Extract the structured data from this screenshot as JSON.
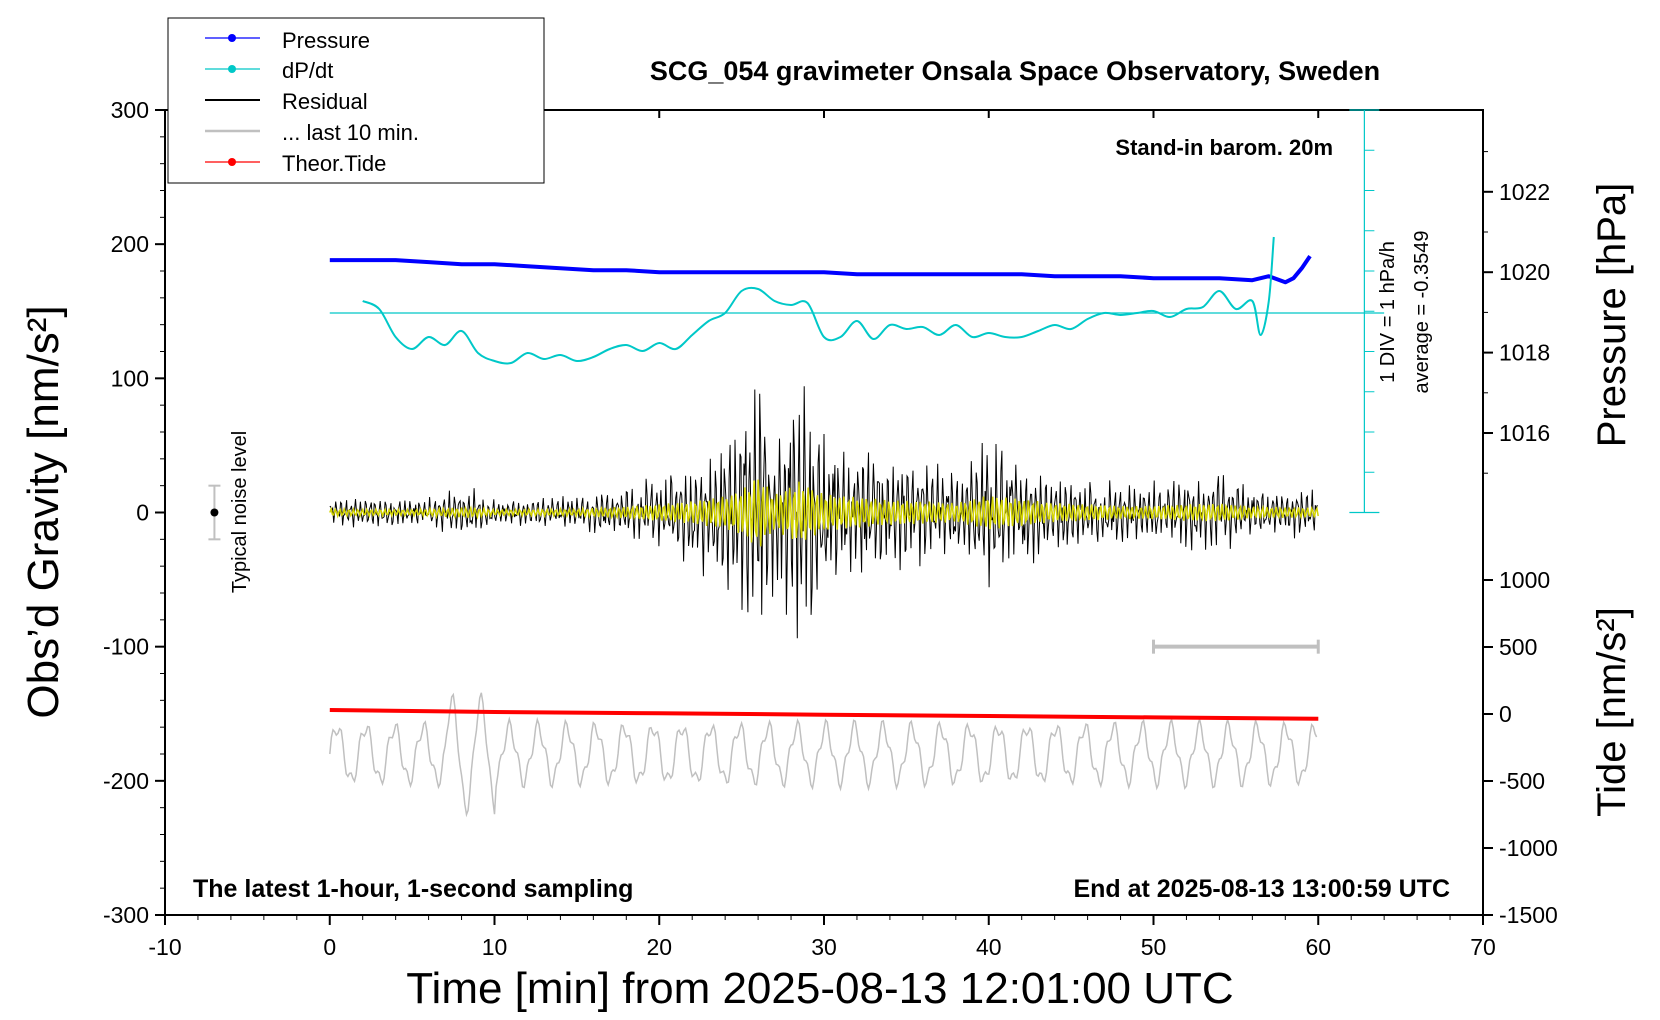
{
  "chart_data": {
    "type": "line",
    "title": "SCG_054 gravimeter Onsala Space Observatory, Sweden",
    "xlabel": "Time [min] from 2025-08-13 12:01:00 UTC",
    "ylabel_left": "Obs’d Gravity [nm/s²]",
    "ylabel_right_top": "Pressure [hPa]",
    "ylabel_right_bottom": "Tide [nm/s²]",
    "xlim": [
      -10,
      70
    ],
    "ylim_left": [
      -300,
      300
    ],
    "x_ticks": [
      "-10",
      "0",
      "10",
      "20",
      "30",
      "40",
      "50",
      "60",
      "70"
    ],
    "y_left_ticks": [
      "300",
      "200",
      "100",
      "0",
      "-100",
      "-200",
      "-300"
    ],
    "pressure_axis": {
      "ticks": [
        "1022",
        "1020",
        "1018",
        "1016"
      ],
      "range_hPa": [
        1014.3,
        1024.3
      ]
    },
    "tide_axis": {
      "ticks": [
        "1000",
        "500",
        "0",
        "-500",
        "-1000",
        "-1500"
      ],
      "range": [
        -1500,
        1500
      ]
    },
    "annotations": {
      "stand_in": "Stand-in barom. 20m",
      "latest": "The latest 1-hour, 1-second sampling",
      "end_at": "End at 2025-08-13 13:00:59 UTC",
      "noise": "Typical noise level",
      "div_scale": "1 DIV = 1 hPa/h",
      "average": "average = -0.3549"
    },
    "legend": {
      "placement": "top-left",
      "entries": [
        {
          "label": "Pressure",
          "color": "#0000ff"
        },
        {
          "label": "dP/dt",
          "color": "#00c8c8"
        },
        {
          "label": "Residual",
          "color": "#000000"
        },
        {
          "label": "... last 10 min.",
          "color": "#c0c0c0"
        },
        {
          "label": "Theor.Tide",
          "color": "#ff0000"
        }
      ]
    },
    "colors": {
      "pressure": "#0000ff",
      "dpdt": "#00c8c8",
      "residual": "#000000",
      "residual_smooth": "#d4d400",
      "last10": "#c0c0c0",
      "tide": "#ff0000"
    },
    "series": [
      {
        "name": "Pressure",
        "unit": "hPa",
        "x": [
          0,
          2,
          4,
          6,
          8,
          10,
          12,
          14,
          16,
          18,
          20,
          22,
          24,
          26,
          28,
          30,
          32,
          34,
          36,
          38,
          40,
          42,
          44,
          46,
          48,
          50,
          52,
          54,
          56,
          57,
          58,
          58.5,
          59,
          59.5
        ],
        "values": [
          1020.3,
          1020.3,
          1020.3,
          1020.25,
          1020.2,
          1020.2,
          1020.15,
          1020.1,
          1020.05,
          1020.05,
          1020.0,
          1020.0,
          1020.0,
          1020.0,
          1020.0,
          1020.0,
          1019.95,
          1019.95,
          1019.95,
          1019.95,
          1019.95,
          1019.95,
          1019.9,
          1019.9,
          1019.9,
          1019.85,
          1019.85,
          1019.85,
          1019.8,
          1019.9,
          1019.75,
          1019.85,
          1020.1,
          1020.4
        ]
      },
      {
        "name": "dP/dt",
        "unit": "hPa/h (1 DIV = 1 hPa/h; reference line at average = -0.3549)",
        "x": [
          2,
          3,
          4,
          5,
          6,
          7,
          8,
          9,
          10,
          11,
          12,
          13,
          14,
          15,
          16,
          17,
          18,
          19,
          20,
          21,
          22,
          23,
          24,
          25,
          26,
          27,
          28,
          29,
          30,
          31,
          32,
          33,
          34,
          35,
          36,
          37,
          38,
          39,
          40,
          41,
          42,
          43,
          44,
          45,
          46,
          47,
          48,
          49,
          50,
          51,
          52,
          53,
          54,
          55,
          56,
          56.5,
          57,
          57.3
        ],
        "values": [
          0.3,
          0.1,
          -0.6,
          -0.9,
          -0.6,
          -0.8,
          -0.45,
          -1.0,
          -1.2,
          -1.25,
          -1.0,
          -1.15,
          -1.05,
          -1.2,
          -1.1,
          -0.9,
          -0.8,
          -0.95,
          -0.75,
          -0.9,
          -0.55,
          -0.2,
          0.0,
          0.55,
          0.6,
          0.3,
          0.2,
          0.25,
          -0.6,
          -0.6,
          -0.2,
          -0.65,
          -0.3,
          -0.4,
          -0.35,
          -0.55,
          -0.3,
          -0.6,
          -0.5,
          -0.6,
          -0.6,
          -0.45,
          -0.3,
          -0.4,
          -0.15,
          0.0,
          -0.05,
          0.0,
          0.05,
          -0.1,
          0.1,
          0.15,
          0.55,
          0.1,
          0.3,
          -0.55,
          0.3,
          1.9
        ]
      },
      {
        "name": "Residual",
        "unit": "nm/s² (envelope amplitude, oscillating around 0)",
        "x": [
          0,
          5,
          8.5,
          10,
          15,
          18,
          20,
          22,
          24,
          25,
          26,
          27,
          28.5,
          30,
          32,
          34,
          36,
          38,
          40,
          42,
          44,
          46,
          48,
          50,
          52,
          54,
          56,
          58,
          60
        ],
        "values": [
          12,
          10,
          18,
          10,
          12,
          20,
          28,
          38,
          55,
          75,
          125,
          60,
          105,
          62,
          52,
          42,
          38,
          32,
          58,
          45,
          32,
          28,
          22,
          22,
          28,
          30,
          20,
          18,
          16
        ]
      },
      {
        "name": "... last 10 min.",
        "unit": "nm/s² (gray oscillating trace centred near -180, duration bar 50 to 60 min at -100)",
        "x": [
          0,
          8,
          10,
          20,
          30,
          40,
          50,
          60
        ],
        "values": [
          -180,
          -180,
          -180,
          -180,
          -180,
          -180,
          -180,
          -180
        ]
      },
      {
        "name": "Theor.Tide",
        "unit": "nm/s²",
        "x": [
          0,
          10,
          20,
          30,
          40,
          50,
          60
        ],
        "values": [
          30,
          15,
          5,
          -5,
          -15,
          -25,
          -35
        ]
      }
    ]
  }
}
